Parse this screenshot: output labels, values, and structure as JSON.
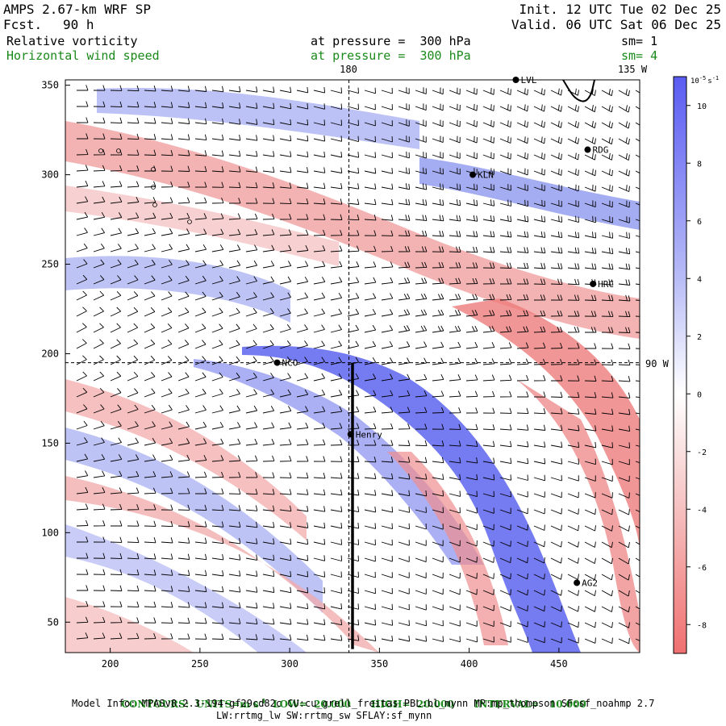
{
  "header": {
    "model": "AMPS 2.67-km WRF SP",
    "fcst_label": "Fcst.",
    "fcst_value": "90 h",
    "init": "Init. 12 UTC Tue 02 Dec 25",
    "valid": "Valid. 06 UTC Sat 06 Dec 25",
    "field1": "Relative vorticity",
    "field1_level": "at pressure =  300 hPa",
    "field1_sm": "sm= 1",
    "field2": "Horizontal wind speed",
    "field2_level": "at pressure =  300 hPa",
    "field2_sm": "sm= 4"
  },
  "map_labels": {
    "lon_180": "180",
    "lon_135w": "135 W",
    "lon_90w": "90 W"
  },
  "footer": {
    "contours": "CONTOURS:  UNITS=m s",
    "contours_sup": "-1",
    "low": "LOW=  20.000",
    "high": "HIGH=  20.000",
    "interval": "INTERVAL=   10.000",
    "model_info": "Model Info: MPASv8.2.3-194-gf29cd82c CU:cu_grell_freitas PBL:bl_mynn MP:mp_thompson SF:sf_noahmp 2.7",
    "physics": "LW:rrtmg_lw SW:rrtmg_sw SFLAY:sf_mynn"
  },
  "colors": {
    "positive": "#4f5ef0",
    "negative": "#f06a6a",
    "neutral": "#ffffff",
    "green_text": "#1a8a1a"
  },
  "chart_data": {
    "type": "heatmap",
    "title": "Relative vorticity and horizontal wind speed at 300 hPa",
    "xlim": [
      175,
      495
    ],
    "ylim": [
      33,
      353
    ],
    "x_ticks": [
      200,
      250,
      300,
      350,
      400,
      450
    ],
    "y_ticks": [
      50,
      100,
      150,
      200,
      250,
      300,
      350
    ],
    "colorbar": {
      "unit_label": "10",
      "unit_exp": "-5",
      "unit_suffix": "s",
      "unit_suffix_exp": "-1",
      "range": [
        -9,
        11
      ],
      "ticks": [
        10,
        8,
        6,
        4,
        2,
        0,
        -2,
        -4,
        -6,
        -8
      ]
    },
    "cross_section": {
      "x": 335,
      "y_from": 35,
      "y_to": 195
    },
    "ref_lines": {
      "vertical_x": 333,
      "horizontal_y": 195
    },
    "stations": [
      {
        "name": "RDG",
        "x": 466,
        "y": 314
      },
      {
        "name": "KLN",
        "x": 402,
        "y": 300
      },
      {
        "name": "HRC",
        "x": 469,
        "y": 239
      },
      {
        "name": "NCO",
        "x": 293,
        "y": 195
      },
      {
        "name": "Henry",
        "x": 334,
        "y": 155
      },
      {
        "name": "AG2",
        "x": 460,
        "y": 72
      },
      {
        "name": "LVL",
        "x": 426,
        "y": 353
      }
    ]
  }
}
